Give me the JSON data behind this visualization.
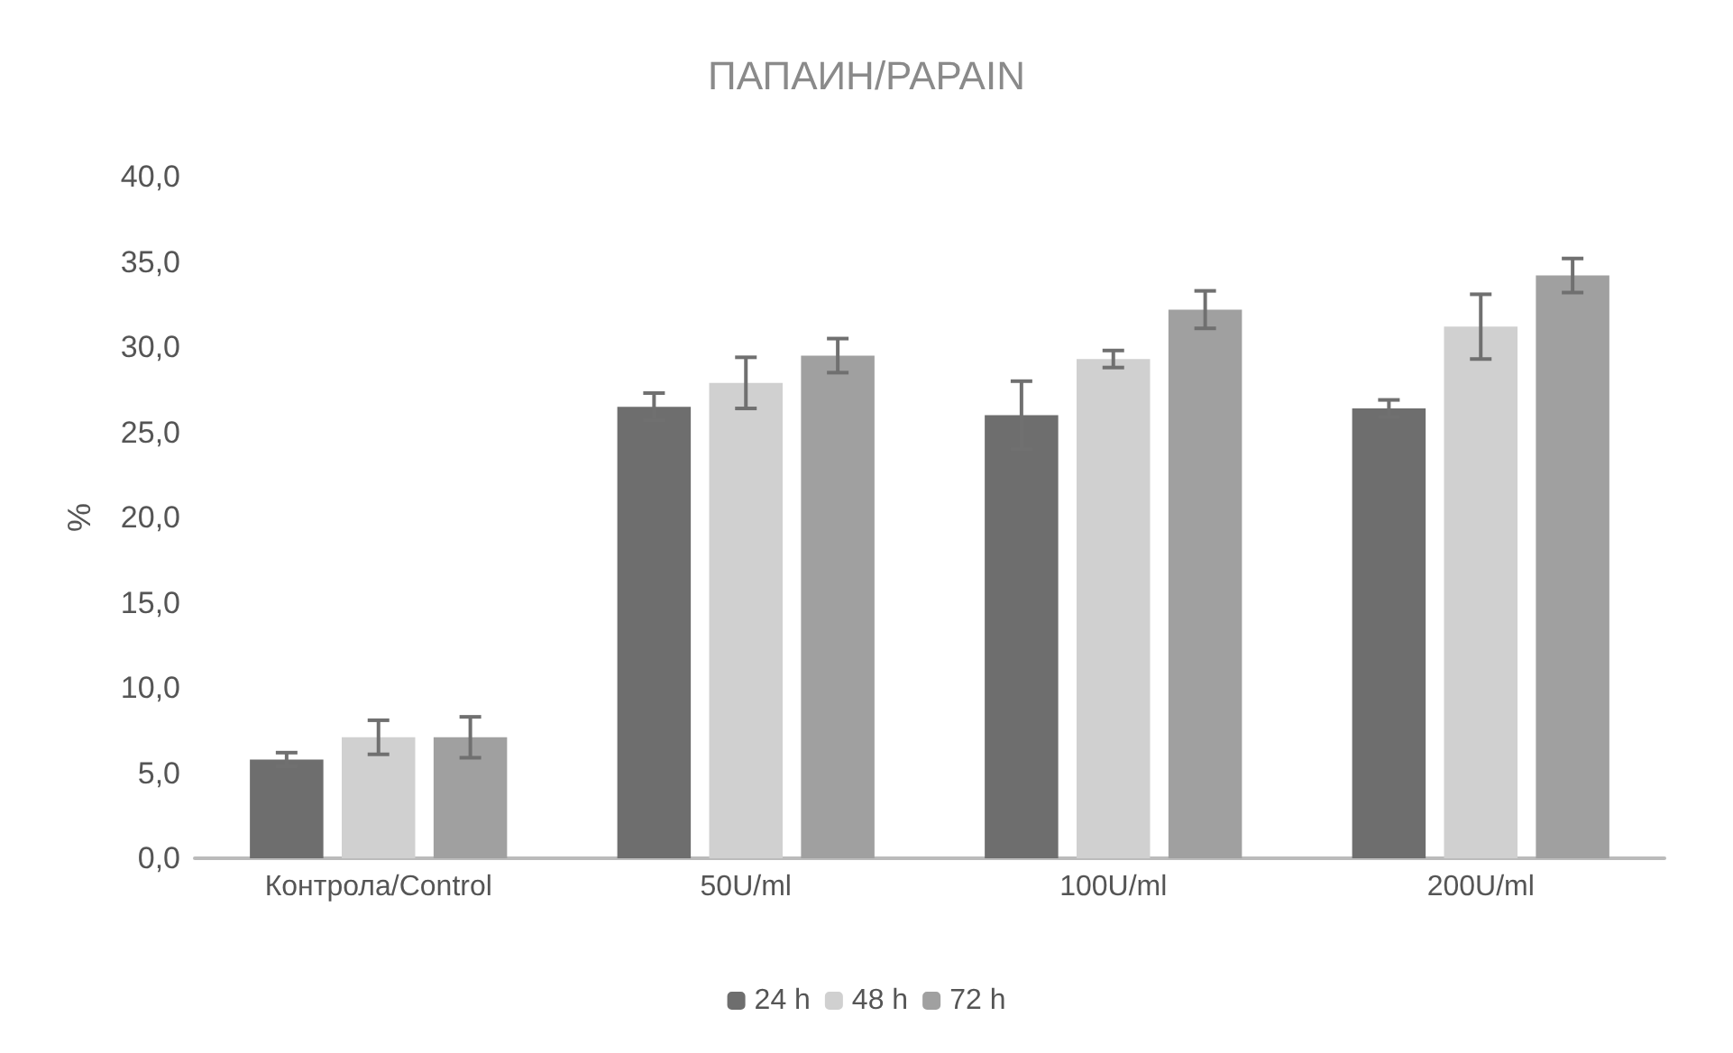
{
  "chart_data": {
    "type": "bar",
    "title": "ПАПАИН/PAPAIN",
    "ylabel": "%",
    "categories": [
      "Контрола/Control",
      "50U/ml",
      "100U/ml",
      "200U/ml"
    ],
    "series": [
      {
        "name": "24 h",
        "color": "#6e6e6e",
        "values": [
          5.8,
          26.5,
          26.0,
          26.4
        ],
        "errors": [
          0.4,
          0.8,
          2.0,
          0.5
        ]
      },
      {
        "name": "48 h",
        "color": "#d0d0d0",
        "values": [
          7.1,
          27.9,
          29.3,
          31.2
        ],
        "errors": [
          1.0,
          1.5,
          0.5,
          1.9
        ]
      },
      {
        "name": "72 h",
        "color": "#a0a0a0",
        "values": [
          7.1,
          29.5,
          32.2,
          34.2
        ],
        "errors": [
          1.2,
          1.0,
          1.1,
          1.0
        ]
      }
    ],
    "ylim": [
      0,
      40
    ],
    "yticks": [
      {
        "value": 0,
        "label": "0,0"
      },
      {
        "value": 5,
        "label": "5,0"
      },
      {
        "value": 10,
        "label": "10,0"
      },
      {
        "value": 15,
        "label": "15,0"
      },
      {
        "value": 20,
        "label": "20,0"
      },
      {
        "value": 25,
        "label": "25,0"
      },
      {
        "value": 30,
        "label": "30,0"
      },
      {
        "value": 35,
        "label": "35,0"
      },
      {
        "value": 40,
        "label": "40,0"
      }
    ],
    "grid": false,
    "legend": "bottom"
  }
}
